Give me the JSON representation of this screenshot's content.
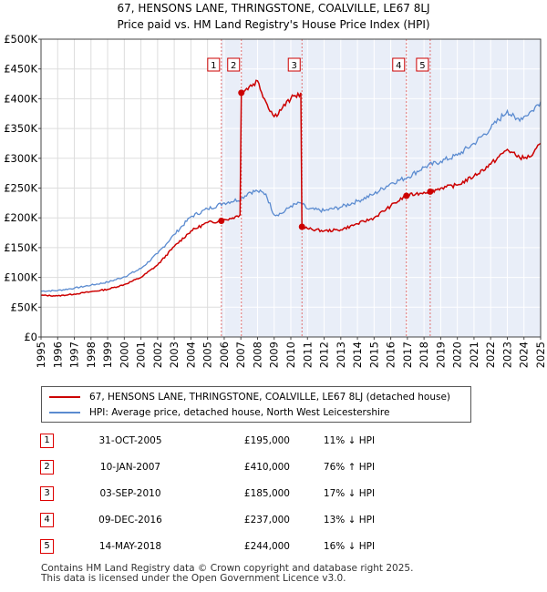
{
  "title_line1": "67, HENSONS LANE, THRINGSTONE, COALVILLE, LE67 8LJ",
  "title_line2": "Price paid vs. HM Land Registry's House Price Index (HPI)",
  "colors": {
    "property": "#cc0000",
    "hpi": "#5b8bd0",
    "shade": "#e9eef8",
    "marker_line": "#e07070"
  },
  "chart_data": {
    "type": "line",
    "xlim": [
      1995,
      2025
    ],
    "ylim": [
      0,
      500000
    ],
    "y_ticks": [
      {
        "value": 0,
        "label": "£0"
      },
      {
        "value": 50000,
        "label": "£50K"
      },
      {
        "value": 100000,
        "label": "£100K"
      },
      {
        "value": 150000,
        "label": "£150K"
      },
      {
        "value": 200000,
        "label": "£200K"
      },
      {
        "value": 250000,
        "label": "£250K"
      },
      {
        "value": 300000,
        "label": "£300K"
      },
      {
        "value": 350000,
        "label": "£350K"
      },
      {
        "value": 400000,
        "label": "£400K"
      },
      {
        "value": 450000,
        "label": "£450K"
      },
      {
        "value": 500000,
        "label": "£500K"
      }
    ],
    "x_ticks": [
      "1995",
      "1996",
      "1997",
      "1998",
      "1999",
      "2000",
      "2001",
      "2002",
      "2003",
      "2004",
      "2005",
      "2006",
      "2007",
      "2008",
      "2009",
      "2010",
      "2011",
      "2012",
      "2013",
      "2014",
      "2015",
      "2016",
      "2017",
      "2018",
      "2019",
      "2020",
      "2021",
      "2022",
      "2023",
      "2024",
      "2025"
    ],
    "shaded_from": 2005.83,
    "series": [
      {
        "name": "67, HENSONS LANE, THRINGSTONE, COALVILLE, LE67 8LJ (detached house)",
        "points": [
          [
            1995.0,
            70000
          ],
          [
            1996.0,
            69000
          ],
          [
            1997.0,
            72000
          ],
          [
            1998.0,
            76000
          ],
          [
            1999.0,
            80000
          ],
          [
            2000.0,
            88000
          ],
          [
            2001.0,
            100000
          ],
          [
            2002.0,
            121000
          ],
          [
            2003.0,
            152000
          ],
          [
            2004.0,
            178000
          ],
          [
            2005.0,
            192000
          ],
          [
            2005.83,
            195000
          ],
          [
            2006.5,
            200000
          ],
          [
            2006.95,
            205000
          ],
          [
            2007.03,
            410000
          ],
          [
            2007.5,
            420000
          ],
          [
            2008.0,
            430000
          ],
          [
            2008.5,
            395000
          ],
          [
            2009.0,
            370000
          ],
          [
            2009.5,
            385000
          ],
          [
            2010.0,
            400000
          ],
          [
            2010.6,
            410000
          ],
          [
            2010.67,
            185000
          ],
          [
            2011.0,
            182000
          ],
          [
            2012.0,
            178000
          ],
          [
            2013.0,
            180000
          ],
          [
            2014.0,
            190000
          ],
          [
            2015.0,
            200000
          ],
          [
            2016.0,
            220000
          ],
          [
            2016.94,
            237000
          ],
          [
            2017.5,
            240000
          ],
          [
            2018.0,
            243000
          ],
          [
            2018.37,
            244000
          ],
          [
            2019.0,
            250000
          ],
          [
            2020.0,
            255000
          ],
          [
            2021.0,
            270000
          ],
          [
            2022.0,
            290000
          ],
          [
            2023.0,
            315000
          ],
          [
            2023.5,
            305000
          ],
          [
            2024.0,
            300000
          ],
          [
            2024.5,
            305000
          ],
          [
            2025.0,
            325000
          ]
        ]
      },
      {
        "name": "HPI: Average price, detached house, North West Leicestershire",
        "points": [
          [
            1995.0,
            77000
          ],
          [
            1996.0,
            78000
          ],
          [
            1997.0,
            82000
          ],
          [
            1998.0,
            87000
          ],
          [
            1999.0,
            92000
          ],
          [
            2000.0,
            101000
          ],
          [
            2001.0,
            115000
          ],
          [
            2002.0,
            140000
          ],
          [
            2003.0,
            172000
          ],
          [
            2004.0,
            202000
          ],
          [
            2005.0,
            215000
          ],
          [
            2006.0,
            225000
          ],
          [
            2007.0,
            232000
          ],
          [
            2007.5,
            243000
          ],
          [
            2008.0,
            245000
          ],
          [
            2008.5,
            240000
          ],
          [
            2009.0,
            205000
          ],
          [
            2009.5,
            208000
          ],
          [
            2010.0,
            220000
          ],
          [
            2010.6,
            225000
          ],
          [
            2011.0,
            215000
          ],
          [
            2012.0,
            212000
          ],
          [
            2013.0,
            218000
          ],
          [
            2014.0,
            228000
          ],
          [
            2015.0,
            240000
          ],
          [
            2016.0,
            258000
          ],
          [
            2017.0,
            268000
          ],
          [
            2018.0,
            285000
          ],
          [
            2019.0,
            295000
          ],
          [
            2020.0,
            305000
          ],
          [
            2021.0,
            325000
          ],
          [
            2022.0,
            350000
          ],
          [
            2023.0,
            380000
          ],
          [
            2023.5,
            365000
          ],
          [
            2024.0,
            370000
          ],
          [
            2024.5,
            380000
          ],
          [
            2025.0,
            395000
          ]
        ]
      }
    ],
    "sales": [
      {
        "label": "1",
        "x": 2005.83,
        "price": 195000
      },
      {
        "label": "2",
        "x": 2007.03,
        "price": 410000
      },
      {
        "label": "3",
        "x": 2010.67,
        "price": 185000
      },
      {
        "label": "4",
        "x": 2016.94,
        "price": 237000
      },
      {
        "label": "5",
        "x": 2018.37,
        "price": 244000
      }
    ]
  },
  "legend": {
    "property": "67, HENSONS LANE, THRINGSTONE, COALVILLE, LE67 8LJ (detached house)",
    "hpi": "HPI: Average price, detached house, North West Leicestershire"
  },
  "table": [
    {
      "num": "1",
      "date": "31-OCT-2005",
      "price": "£195,000",
      "hpi": "11% ↓ HPI"
    },
    {
      "num": "2",
      "date": "10-JAN-2007",
      "price": "£410,000",
      "hpi": "76% ↑ HPI"
    },
    {
      "num": "3",
      "date": "03-SEP-2010",
      "price": "£185,000",
      "hpi": "17% ↓ HPI"
    },
    {
      "num": "4",
      "date": "09-DEC-2016",
      "price": "£237,000",
      "hpi": "13% ↓ HPI"
    },
    {
      "num": "5",
      "date": "14-MAY-2018",
      "price": "£244,000",
      "hpi": "16% ↓ HPI"
    }
  ],
  "footer_line1": "Contains HM Land Registry data © Crown copyright and database right 2025.",
  "footer_line2": "This data is licensed under the Open Government Licence v3.0."
}
